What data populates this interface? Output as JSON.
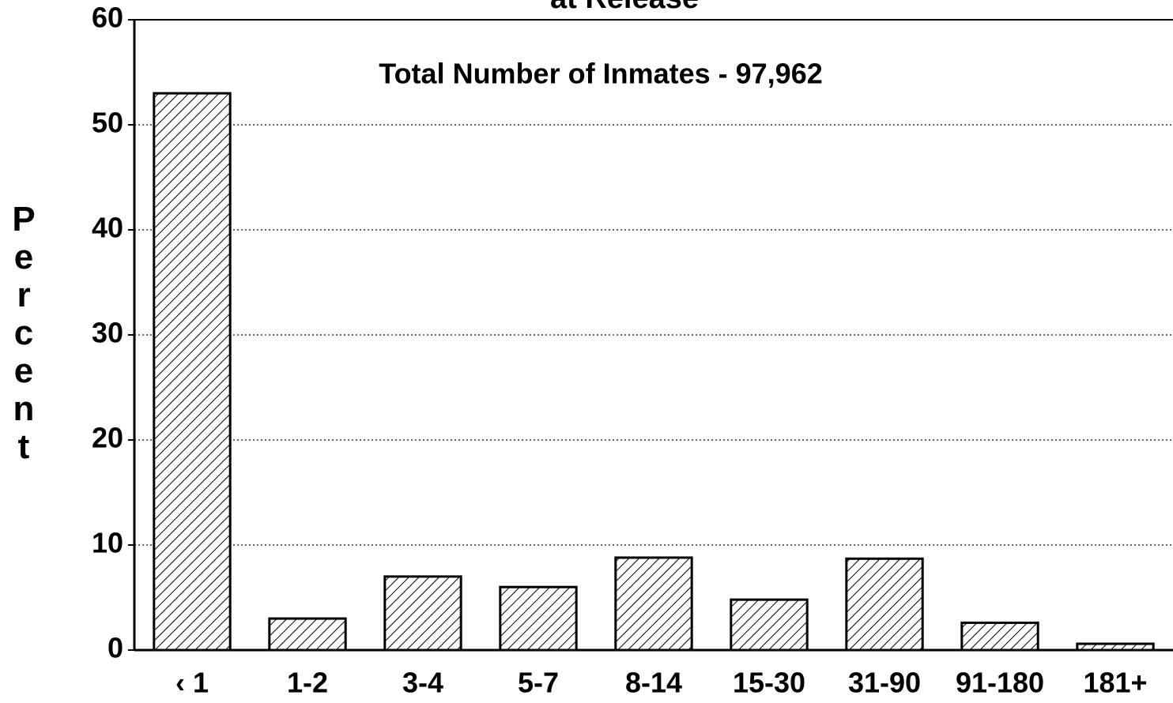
{
  "chart_data": {
    "type": "bar",
    "title": "at Release",
    "annotation": "Total Number of Inmates - 97,962",
    "ylabel": "Percent",
    "categories": [
      "‹ 1",
      "1-2",
      "3-4",
      "5-7",
      "8-14",
      "15-30",
      "31-90",
      "91-180",
      "181+"
    ],
    "values": [
      53,
      3,
      7,
      6,
      8.8,
      4.8,
      8.7,
      2.6,
      0.6
    ],
    "color": "#000000",
    "ylim": [
      0,
      60
    ],
    "yticks": [
      0,
      10,
      20,
      30,
      40,
      50,
      60
    ],
    "grid": true
  }
}
